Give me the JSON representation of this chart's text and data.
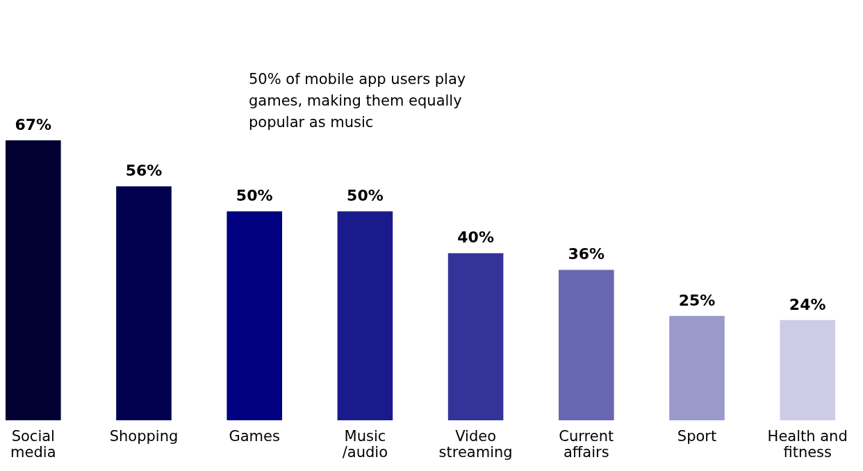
{
  "chart_data": {
    "type": "bar",
    "categories": [
      "Social\nmedia",
      "Shopping",
      "Games",
      "Music\n/audio",
      "Video\nstreaming",
      "Current\naffairs",
      "Sport",
      "Health and\nfitness"
    ],
    "values": [
      67,
      56,
      50,
      50,
      40,
      36,
      25,
      24
    ],
    "colors": [
      "#000033",
      "#00004f",
      "#000080",
      "#1a1a8c",
      "#333399",
      "#6666b3",
      "#9999cc",
      "#ccccE6"
    ],
    "value_labels": [
      "67%",
      "56%",
      "50%",
      "50%",
      "40%",
      "36%",
      "25%",
      "24%"
    ],
    "annotations": [
      "50% of mobile app users play\ngames, making them equally\npopular as music"
    ],
    "grid": false,
    "legend": false
  }
}
